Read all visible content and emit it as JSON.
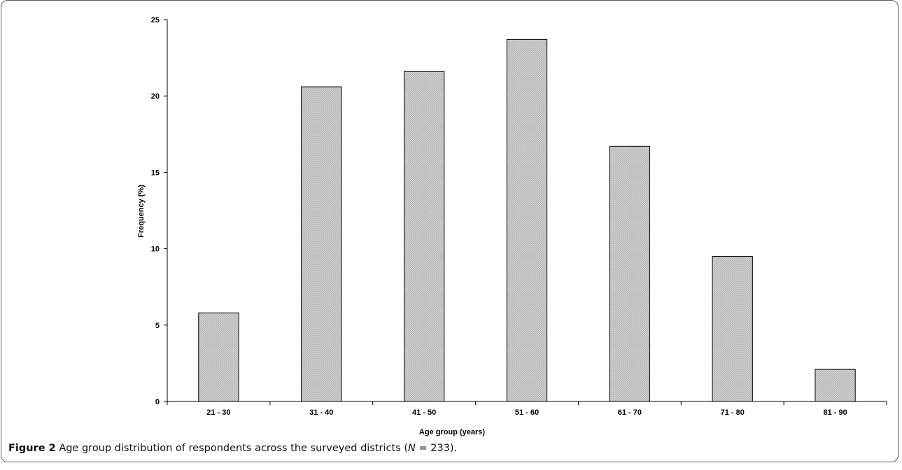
{
  "caption": {
    "figure_number": "Figure 2",
    "text_before_n": "Age group distribution of respondents across the surveyed districts (",
    "n_symbol": "N",
    "text_after_n": " = 233)."
  },
  "chart_data": {
    "type": "bar",
    "categories": [
      "21 - 30",
      "31 - 40",
      "41 - 50",
      "51 - 60",
      "61 - 70",
      "71 - 80",
      "81 - 90"
    ],
    "values": [
      5.8,
      20.6,
      21.6,
      23.7,
      16.7,
      9.5,
      2.1
    ],
    "title": "",
    "xlabel": "Age group (years)",
    "ylabel": "Frequency (%)",
    "ylim": [
      0,
      25
    ],
    "yticks": [
      0,
      5,
      10,
      15,
      20,
      25
    ],
    "grid": false,
    "legend": "none",
    "bar_fill": "#d6d6d6",
    "bar_stroke": "#000000"
  }
}
